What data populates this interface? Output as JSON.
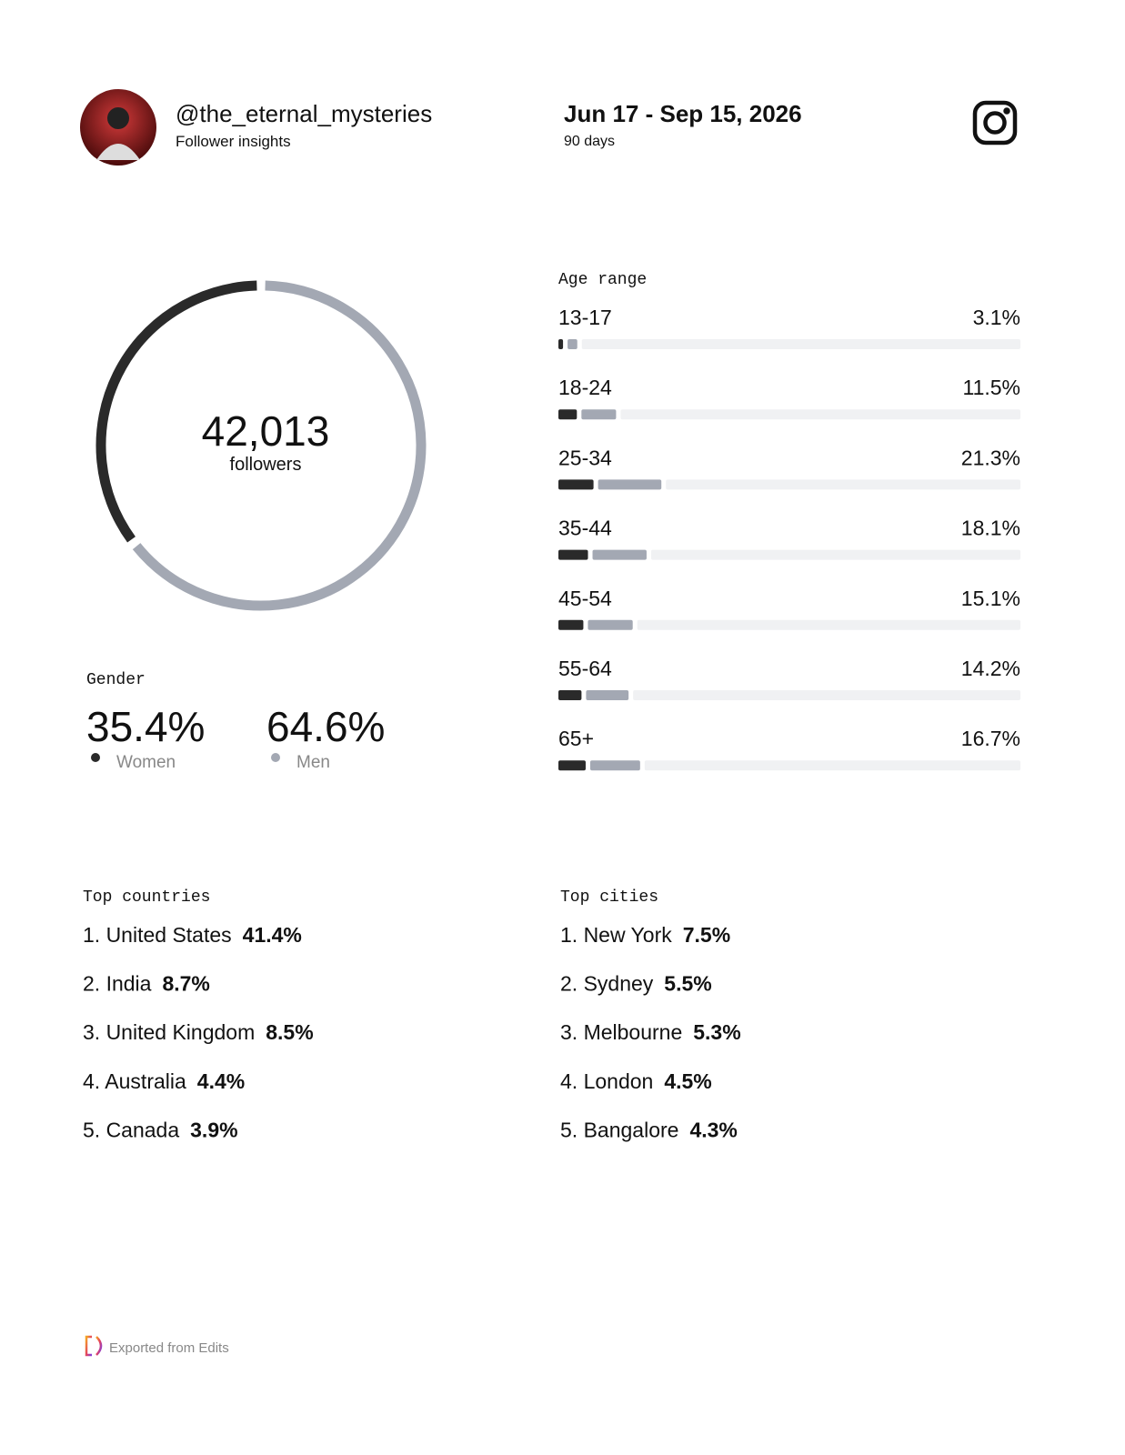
{
  "header": {
    "handle": "@the_eternal_mysteries",
    "subtitle": "Follower insights",
    "date_range": "Jun 17 - Sep 15, 2026",
    "period": "90 days"
  },
  "chart_data": [
    {
      "type": "donut",
      "title": "Gender",
      "center_value": "42,013",
      "center_label": "followers",
      "categories": [
        "Women",
        "Men"
      ],
      "values": [
        35.4,
        64.6
      ],
      "value_labels": [
        "35.4%",
        "64.6%"
      ],
      "colors": [
        "#2a2a2a",
        "#a3a8b3"
      ]
    },
    {
      "type": "bar",
      "title": "Age range",
      "categories": [
        "13-17",
        "18-24",
        "25-34",
        "35-44",
        "45-54",
        "55-64",
        "65+"
      ],
      "values": [
        3.1,
        11.5,
        21.3,
        18.1,
        15.1,
        14.2,
        16.7
      ],
      "value_labels": [
        "3.1%",
        "11.5%",
        "21.3%",
        "18.1%",
        "15.1%",
        "14.2%",
        "16.7%"
      ],
      "series": [
        {
          "color": "#2a2a2a",
          "values": [
            1.0,
            4.0,
            7.6,
            6.4,
            5.4,
            5.0,
            5.9
          ]
        },
        {
          "color": "#a3a8b3",
          "values": [
            2.1,
            7.5,
            13.7,
            11.7,
            9.7,
            9.2,
            10.8
          ]
        }
      ],
      "xlim": [
        0,
        100
      ],
      "track_color": "#f0f1f3"
    }
  ],
  "countries": {
    "title": "Top countries",
    "rows": [
      {
        "label": "1. United States",
        "share": "41.4%"
      },
      {
        "label": "2. India",
        "share": "8.7%"
      },
      {
        "label": "3. United Kingdom",
        "share": "8.5%"
      },
      {
        "label": "4. Australia",
        "share": "4.4%"
      },
      {
        "label": "5. Canada",
        "share": "3.9%"
      }
    ]
  },
  "cities": {
    "title": "Top cities",
    "rows": [
      {
        "label": "1. New York",
        "share": "7.5%"
      },
      {
        "label": "2. Sydney",
        "share": "5.5%"
      },
      {
        "label": "3. Melbourne",
        "share": "5.3%"
      },
      {
        "label": "4. London",
        "share": "4.5%"
      },
      {
        "label": "5. Bangalore",
        "share": "4.3%"
      }
    ]
  },
  "footer": {
    "text": "Exported from Edits"
  }
}
